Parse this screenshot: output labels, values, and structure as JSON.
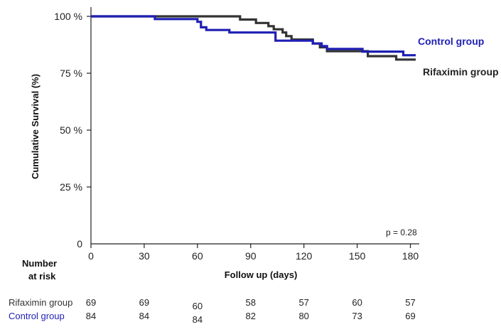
{
  "chart_data": {
    "type": "line",
    "title": "",
    "xlabel": "Follow up (days)",
    "ylabel": "Cumulative Survival (%)",
    "xlim": [
      0,
      185
    ],
    "ylim": [
      0,
      100
    ],
    "x_ticks": [
      0,
      30,
      60,
      90,
      120,
      150,
      180
    ],
    "y_ticks": [
      {
        "value": 0,
        "label": "0"
      },
      {
        "value": 25,
        "label": "25 %"
      },
      {
        "value": 50,
        "label": "50 %"
      },
      {
        "value": 75,
        "label": "75 %"
      },
      {
        "value": 100,
        "label": "100 %"
      }
    ],
    "step": true,
    "grid": false,
    "annotation": "p = 0.28",
    "series": [
      {
        "name": "Control group",
        "color": "#1f1fb4",
        "points": [
          [
            0,
            100
          ],
          [
            36,
            100
          ],
          [
            36,
            98.8
          ],
          [
            60,
            98.8
          ],
          [
            60,
            97.6
          ],
          [
            62,
            97.6
          ],
          [
            62,
            95.2
          ],
          [
            65,
            95.2
          ],
          [
            65,
            94.0
          ],
          [
            78,
            94.0
          ],
          [
            78,
            92.9
          ],
          [
            104,
            92.9
          ],
          [
            104,
            89.3
          ],
          [
            125,
            89.3
          ],
          [
            125,
            88.1
          ],
          [
            130,
            88.1
          ],
          [
            130,
            86.9
          ],
          [
            133,
            86.9
          ],
          [
            133,
            85.7
          ],
          [
            153,
            85.7
          ],
          [
            153,
            84.5
          ],
          [
            176,
            84.5
          ],
          [
            176,
            82.9
          ],
          [
            183,
            82.9
          ]
        ]
      },
      {
        "name": "Rifaximin group",
        "color": "#333333",
        "points": [
          [
            0,
            100
          ],
          [
            84,
            100
          ],
          [
            84,
            98.6
          ],
          [
            93,
            98.6
          ],
          [
            93,
            97.1
          ],
          [
            100,
            97.1
          ],
          [
            100,
            95.7
          ],
          [
            103,
            95.7
          ],
          [
            103,
            94.3
          ],
          [
            108,
            94.3
          ],
          [
            108,
            92.9
          ],
          [
            110,
            92.9
          ],
          [
            110,
            91.3
          ],
          [
            113,
            91.3
          ],
          [
            113,
            89.8
          ],
          [
            125,
            89.8
          ],
          [
            125,
            88.1
          ],
          [
            129,
            88.1
          ],
          [
            129,
            86.4
          ],
          [
            133,
            86.4
          ],
          [
            133,
            84.7
          ],
          [
            156,
            84.7
          ],
          [
            156,
            82.5
          ],
          [
            172,
            82.5
          ],
          [
            172,
            81.0
          ],
          [
            183,
            81.0
          ]
        ]
      }
    ]
  },
  "risk_table": {
    "heading_line1": "Number",
    "heading_line2": "at risk",
    "rows": [
      {
        "label": "Rifaximin group",
        "color": "#333333",
        "values": [
          "69",
          "69",
          "60",
          "58",
          "57",
          "60",
          "57"
        ]
      },
      {
        "label": "Control group",
        "color": "#1f1fb4",
        "values": [
          "84",
          "84",
          "84",
          "82",
          "80",
          "73",
          "69"
        ]
      }
    ]
  }
}
